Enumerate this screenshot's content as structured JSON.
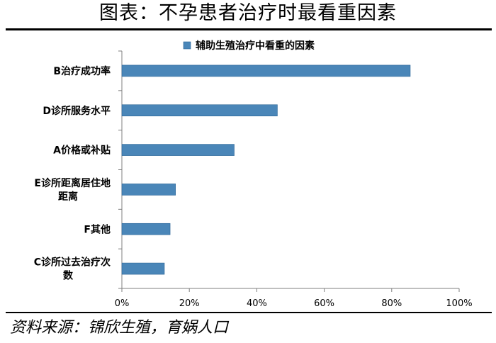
{
  "page": {
    "title": "图表：不孕患者治疗时最看重因素",
    "source": "资料来源：锦欣生殖，育娲人口"
  },
  "colors": {
    "bar_fill": "#4a86b8",
    "bar_edge": "#2a6496",
    "axis": "#7f7f7f",
    "text": "#000000"
  },
  "chart_data": {
    "type": "bar",
    "orientation": "horizontal",
    "categories": [
      [
        "B治疗成功率"
      ],
      [
        "D诊所服务水平"
      ],
      [
        "A价格或补贴"
      ],
      [
        "E诊所距离居住地",
        "距离"
      ],
      [
        "F其他"
      ],
      [
        "C诊所过去治疗次",
        "数"
      ]
    ],
    "series": [
      {
        "name": "辅助生殖治疗中看重的因素",
        "values": [
          0.855,
          0.461,
          0.333,
          0.159,
          0.143,
          0.126
        ]
      }
    ],
    "xlim": [
      0,
      1
    ],
    "xticks": [
      0,
      0.2,
      0.4,
      0.6,
      0.8,
      1.0
    ],
    "xtick_labels": [
      "0%",
      "20%",
      "40%",
      "60%",
      "80%",
      "100%"
    ],
    "legend_position": "top",
    "grid": false
  }
}
